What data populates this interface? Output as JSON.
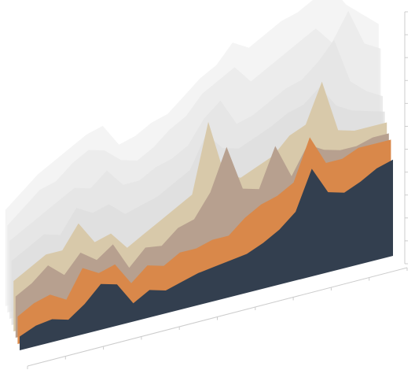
{
  "chart_data": {
    "type": "area3d",
    "ylim": [
      0,
      110
    ],
    "yticks": [
      0,
      10,
      20,
      30,
      40,
      50,
      60,
      70,
      80,
      90,
      100,
      110
    ],
    "series": [
      {
        "color": "#333f4f",
        "values": [
          6,
          9,
          10,
          8,
          13,
          20,
          18,
          8,
          12,
          10,
          12,
          14,
          15,
          16,
          17,
          20,
          24,
          30,
          47,
          35,
          33,
          36,
          40,
          42
        ]
      },
      {
        "color": "#d9884a",
        "values": [
          12,
          16,
          18,
          14,
          26,
          22,
          24,
          14,
          20,
          18,
          22,
          22,
          24,
          24,
          30,
          34,
          36,
          40,
          58,
          45,
          45,
          48,
          48,
          48
        ]
      },
      {
        "color": "#b7a08f",
        "values": [
          18,
          22,
          28,
          22,
          30,
          25,
          30,
          18,
          25,
          24,
          30,
          32,
          42,
          60,
          40,
          38,
          55,
          40,
          52,
          48,
          46,
          46,
          48,
          48
        ]
      },
      {
        "color": "#d8c9aa",
        "values": [
          22,
          26,
          30,
          30,
          40,
          30,
          32,
          24,
          28,
          32,
          36,
          40,
          70,
          45,
          42,
          45,
          48,
          55,
          58,
          75,
          52,
          50,
          50,
          50
        ]
      },
      {
        "color": "#dedede",
        "values": [
          28,
          32,
          36,
          34,
          44,
          40,
          42,
          36,
          38,
          40,
          44,
          48,
          62,
          54,
          52,
          55,
          58,
          62,
          64,
          70,
          60,
          56,
          54,
          52
        ]
      },
      {
        "color": "#e4e4e4",
        "values": [
          34,
          38,
          42,
          46,
          50,
          48,
          54,
          46,
          46,
          50,
          52,
          56,
          66,
          72,
          60,
          62,
          66,
          70,
          72,
          78,
          86,
          66,
          60,
          56
        ]
      },
      {
        "color": "#eaeaea",
        "values": [
          38,
          44,
          50,
          52,
          58,
          62,
          60,
          54,
          52,
          56,
          62,
          66,
          74,
          78,
          82,
          74,
          78,
          82,
          86,
          90,
          82,
          94,
          78,
          74
        ]
      },
      {
        "color": "#f0f0f0",
        "values": [
          42,
          48,
          54,
          58,
          62,
          66,
          68,
          58,
          60,
          64,
          66,
          72,
          78,
          82,
          90,
          86,
          90,
          94,
          96,
          100,
          104,
          94,
          88,
          82
        ]
      }
    ]
  }
}
